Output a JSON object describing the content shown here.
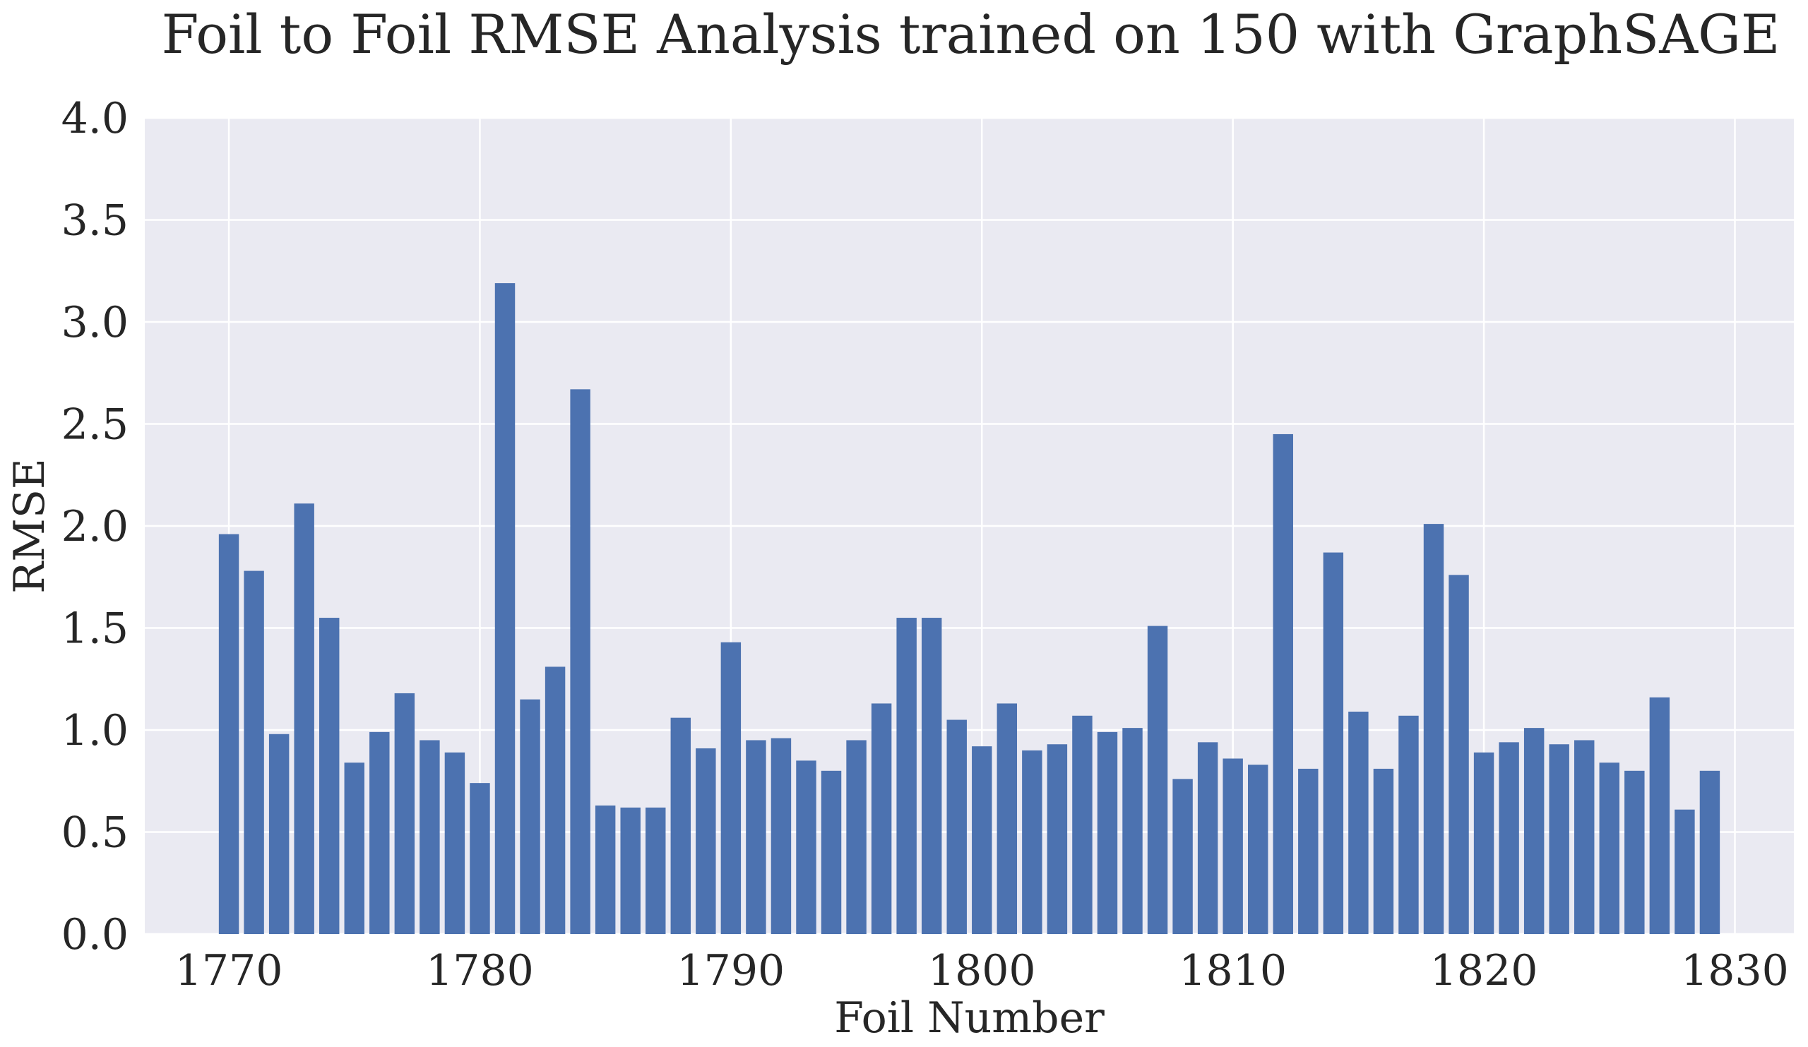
{
  "colors": {
    "bar": "#4c72b0",
    "plot_background": "#eaeaf2",
    "grid": "#ffffff",
    "text": "#262626"
  },
  "chart_data": {
    "type": "bar",
    "title": "Foil to Foil RMSE Analysis  trained on 150 with GraphSAGE",
    "xlabel": "Foil Number",
    "ylabel": "RMSE",
    "xlim": [
      1766.65,
      1832.35
    ],
    "ylim": [
      0.0,
      4.0
    ],
    "x_ticks": [
      1770,
      1780,
      1790,
      1800,
      1810,
      1820,
      1830
    ],
    "y_ticks": [
      0.0,
      0.5,
      1.0,
      1.5,
      2.0,
      2.5,
      3.0,
      3.5,
      4.0
    ],
    "y_tick_labels": [
      "0.0",
      "0.5",
      "1.0",
      "1.5",
      "2.0",
      "2.5",
      "3.0",
      "3.5",
      "4.0"
    ],
    "grid": true,
    "legend": "none",
    "bar_width": 0.8,
    "x": [
      1770,
      1771,
      1772,
      1773,
      1774,
      1775,
      1776,
      1777,
      1778,
      1779,
      1780,
      1781,
      1782,
      1783,
      1784,
      1785,
      1786,
      1787,
      1788,
      1789,
      1790,
      1791,
      1792,
      1793,
      1794,
      1795,
      1796,
      1797,
      1798,
      1799,
      1800,
      1801,
      1802,
      1803,
      1804,
      1805,
      1806,
      1807,
      1808,
      1809,
      1810,
      1811,
      1812,
      1813,
      1814,
      1815,
      1816,
      1817,
      1818,
      1819,
      1820,
      1821,
      1822,
      1823,
      1824,
      1825,
      1826,
      1827,
      1828,
      1829
    ],
    "values": [
      1.96,
      1.78,
      0.98,
      2.11,
      1.55,
      0.84,
      0.99,
      1.18,
      0.95,
      0.89,
      0.74,
      3.19,
      1.15,
      1.31,
      2.67,
      0.63,
      0.62,
      0.62,
      1.06,
      0.91,
      1.43,
      0.95,
      0.96,
      0.85,
      0.8,
      0.95,
      1.13,
      1.55,
      1.55,
      1.05,
      0.92,
      1.13,
      0.9,
      0.93,
      1.07,
      0.99,
      1.01,
      1.51,
      0.76,
      0.94,
      0.86,
      0.83,
      2.45,
      0.81,
      1.87,
      1.09,
      0.81,
      1.07,
      2.01,
      1.76,
      0.89,
      0.94,
      1.01,
      0.93,
      0.95,
      0.84,
      0.8,
      1.16,
      0.61,
      0.8
    ]
  }
}
